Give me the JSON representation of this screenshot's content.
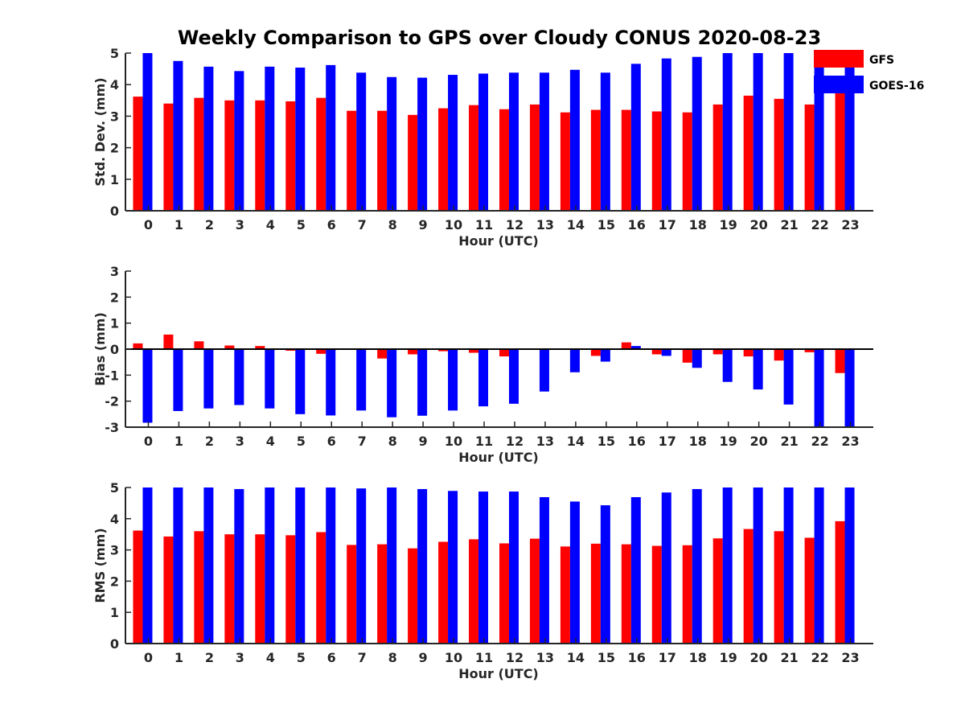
{
  "chart_data": {
    "type": "bar",
    "title": "Weekly Comparison to GPS over Cloudy CONUS 2020-08-23",
    "categories": [
      "0",
      "1",
      "2",
      "3",
      "4",
      "5",
      "6",
      "7",
      "8",
      "9",
      "10",
      "11",
      "12",
      "13",
      "14",
      "15",
      "16",
      "17",
      "18",
      "19",
      "20",
      "21",
      "22",
      "23"
    ],
    "legend": {
      "placement": "top-right",
      "entries": [
        {
          "name": "GFS",
          "color": "#ff0000"
        },
        {
          "name": "GOES-16",
          "color": "#0000ff"
        }
      ]
    },
    "panels": [
      {
        "ylabel": "Std. Dev. (mm)",
        "xlabel": "Hour (UTC)",
        "ylim": [
          0,
          5
        ],
        "yticks": [
          0,
          1,
          2,
          3,
          4,
          5
        ],
        "zero_line": false,
        "series": [
          {
            "name": "GFS",
            "color": "#ff0000",
            "values": [
              3.62,
              3.4,
              3.58,
              3.5,
              3.5,
              3.47,
              3.58,
              3.17,
              3.17,
              3.04,
              3.25,
              3.35,
              3.22,
              3.37,
              3.12,
              3.2,
              3.2,
              3.15,
              3.12,
              3.37,
              3.65,
              3.55,
              3.37,
              3.85
            ]
          },
          {
            "name": "GOES-16",
            "color": "#0000ff",
            "values": [
              5.0,
              4.75,
              4.57,
              4.43,
              4.57,
              4.54,
              4.62,
              4.38,
              4.24,
              4.22,
              4.31,
              4.35,
              4.38,
              4.38,
              4.47,
              4.38,
              4.66,
              4.83,
              4.88,
              5.0,
              5.0,
              5.0,
              5.0,
              5.0
            ]
          }
        ]
      },
      {
        "ylabel": "Bias (mm)",
        "xlabel": "Hour (UTC)",
        "ylim": [
          -3,
          3
        ],
        "yticks": [
          -3,
          -2,
          -1,
          0,
          1,
          2,
          3
        ],
        "zero_line": true,
        "series": [
          {
            "name": "GFS",
            "color": "#ff0000",
            "values": [
              0.22,
              0.56,
              0.3,
              0.14,
              0.12,
              -0.06,
              -0.18,
              -0.02,
              -0.36,
              -0.2,
              -0.08,
              -0.14,
              -0.28,
              0.02,
              -0.02,
              -0.26,
              0.26,
              -0.2,
              -0.52,
              -0.2,
              -0.28,
              -0.44,
              -0.12,
              -0.92
            ]
          },
          {
            "name": "GOES-16",
            "color": "#0000ff",
            "values": [
              -2.83,
              -2.38,
              -2.28,
              -2.15,
              -2.28,
              -2.5,
              -2.55,
              -2.36,
              -2.62,
              -2.56,
              -2.36,
              -2.2,
              -2.1,
              -1.63,
              -0.89,
              -0.48,
              0.12,
              -0.26,
              -0.72,
              -1.26,
              -1.55,
              -2.13,
              -3.0,
              -3.0
            ]
          }
        ]
      },
      {
        "ylabel": "RMS (mm)",
        "xlabel": "Hour (UTC)",
        "ylim": [
          0,
          5
        ],
        "yticks": [
          0,
          1,
          2,
          3,
          4,
          5
        ],
        "zero_line": false,
        "series": [
          {
            "name": "GFS",
            "color": "#ff0000",
            "values": [
              3.62,
              3.43,
              3.6,
              3.5,
              3.5,
              3.47,
              3.57,
              3.16,
              3.18,
              3.05,
              3.26,
              3.34,
              3.21,
              3.36,
              3.11,
              3.2,
              3.18,
              3.13,
              3.15,
              3.37,
              3.67,
              3.6,
              3.39,
              3.92
            ]
          },
          {
            "name": "GOES-16",
            "color": "#0000ff",
            "values": [
              5.0,
              5.0,
              5.0,
              4.95,
              5.0,
              5.0,
              5.0,
              4.97,
              5.0,
              4.95,
              4.89,
              4.87,
              4.87,
              4.69,
              4.55,
              4.43,
              4.69,
              4.84,
              4.95,
              5.0,
              5.0,
              5.0,
              5.0,
              5.0
            ]
          }
        ]
      }
    ]
  }
}
